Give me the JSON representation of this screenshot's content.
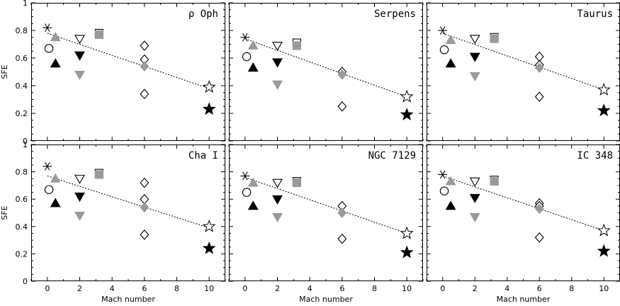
{
  "chart_data": {
    "type": "scatter",
    "xlabel": "Mach number",
    "ylabel": "SFE",
    "xlim": [
      -1,
      11
    ],
    "ylim": [
      0,
      1
    ],
    "xticks": [
      0,
      2,
      4,
      6,
      8,
      10
    ],
    "yticks": [
      0,
      0.2,
      0.4,
      0.6,
      0.8,
      1
    ],
    "xtick_labels": [
      "0",
      "2",
      "4",
      "6",
      "8",
      "10"
    ],
    "ytick_labels": [
      "0",
      "0.2",
      "0.4",
      "0.6",
      "0.8",
      "1"
    ],
    "colors": {
      "black": "#000000",
      "gray": "#9a9a9a",
      "fill_white": "#ffffff"
    },
    "panels": [
      {
        "title": "ρ Oph",
        "fit_line": {
          "x": [
            0,
            10
          ],
          "y": [
            0.78,
            0.38
          ]
        },
        "points": [
          {
            "x": 0.0,
            "y": 0.82,
            "marker": "asterisk",
            "color": "black"
          },
          {
            "x": 0.1,
            "y": 0.67,
            "marker": "circle-open",
            "color": "black"
          },
          {
            "x": 0.5,
            "y": 0.56,
            "marker": "triangle-up",
            "color": "black"
          },
          {
            "x": 0.5,
            "y": 0.75,
            "marker": "triangle-up",
            "color": "gray"
          },
          {
            "x": 2.0,
            "y": 0.74,
            "marker": "triangle-down-open",
            "color": "black"
          },
          {
            "x": 2.0,
            "y": 0.62,
            "marker": "triangle-down",
            "color": "black"
          },
          {
            "x": 2.0,
            "y": 0.48,
            "marker": "triangle-down",
            "color": "gray"
          },
          {
            "x": 3.2,
            "y": 0.78,
            "marker": "square-open",
            "color": "black"
          },
          {
            "x": 3.2,
            "y": 0.77,
            "marker": "square",
            "color": "gray"
          },
          {
            "x": 6.0,
            "y": 0.69,
            "marker": "diamond-open",
            "color": "black"
          },
          {
            "x": 6.0,
            "y": 0.59,
            "marker": "diamond-open",
            "color": "black"
          },
          {
            "x": 6.0,
            "y": 0.54,
            "marker": "diamond",
            "color": "gray"
          },
          {
            "x": 6.0,
            "y": 0.34,
            "marker": "diamond-open",
            "color": "black"
          },
          {
            "x": 10.0,
            "y": 0.39,
            "marker": "star-open",
            "color": "black"
          },
          {
            "x": 10.0,
            "y": 0.23,
            "marker": "star",
            "color": "black"
          }
        ]
      },
      {
        "title": "Serpens",
        "fit_line": {
          "x": [
            0,
            10
          ],
          "y": [
            0.74,
            0.32
          ]
        },
        "points": [
          {
            "x": 0.0,
            "y": 0.75,
            "marker": "asterisk",
            "color": "black"
          },
          {
            "x": 0.1,
            "y": 0.61,
            "marker": "circle-open",
            "color": "black"
          },
          {
            "x": 0.5,
            "y": 0.53,
            "marker": "triangle-up",
            "color": "black"
          },
          {
            "x": 0.5,
            "y": 0.69,
            "marker": "triangle-up",
            "color": "gray"
          },
          {
            "x": 2.0,
            "y": 0.69,
            "marker": "triangle-down-open",
            "color": "black"
          },
          {
            "x": 2.0,
            "y": 0.57,
            "marker": "triangle-down",
            "color": "black"
          },
          {
            "x": 2.0,
            "y": 0.41,
            "marker": "triangle-down",
            "color": "gray"
          },
          {
            "x": 3.2,
            "y": 0.71,
            "marker": "square-open",
            "color": "black"
          },
          {
            "x": 3.2,
            "y": 0.69,
            "marker": "square",
            "color": "gray"
          },
          {
            "x": 6.0,
            "y": 0.5,
            "marker": "diamond-open",
            "color": "black"
          },
          {
            "x": 6.0,
            "y": 0.48,
            "marker": "diamond",
            "color": "gray"
          },
          {
            "x": 6.0,
            "y": 0.25,
            "marker": "diamond-open",
            "color": "black"
          },
          {
            "x": 10.0,
            "y": 0.32,
            "marker": "star-open",
            "color": "black"
          },
          {
            "x": 10.0,
            "y": 0.19,
            "marker": "star",
            "color": "black"
          }
        ]
      },
      {
        "title": "Taurus",
        "fit_line": {
          "x": [
            0,
            10
          ],
          "y": [
            0.78,
            0.37
          ]
        },
        "points": [
          {
            "x": 0.0,
            "y": 0.8,
            "marker": "asterisk",
            "color": "black"
          },
          {
            "x": 0.1,
            "y": 0.66,
            "marker": "circle-open",
            "color": "black"
          },
          {
            "x": 0.5,
            "y": 0.56,
            "marker": "triangle-up",
            "color": "black"
          },
          {
            "x": 0.5,
            "y": 0.73,
            "marker": "triangle-up",
            "color": "gray"
          },
          {
            "x": 2.0,
            "y": 0.74,
            "marker": "triangle-down-open",
            "color": "black"
          },
          {
            "x": 2.0,
            "y": 0.61,
            "marker": "triangle-down",
            "color": "black"
          },
          {
            "x": 2.0,
            "y": 0.47,
            "marker": "triangle-down",
            "color": "gray"
          },
          {
            "x": 3.2,
            "y": 0.75,
            "marker": "square-open",
            "color": "black"
          },
          {
            "x": 3.2,
            "y": 0.74,
            "marker": "square",
            "color": "gray"
          },
          {
            "x": 6.0,
            "y": 0.61,
            "marker": "diamond-open",
            "color": "black"
          },
          {
            "x": 6.0,
            "y": 0.55,
            "marker": "diamond-open",
            "color": "black"
          },
          {
            "x": 6.0,
            "y": 0.53,
            "marker": "diamond",
            "color": "gray"
          },
          {
            "x": 6.0,
            "y": 0.32,
            "marker": "diamond-open",
            "color": "black"
          },
          {
            "x": 10.0,
            "y": 0.37,
            "marker": "star-open",
            "color": "black"
          },
          {
            "x": 10.0,
            "y": 0.22,
            "marker": "star",
            "color": "black"
          }
        ]
      },
      {
        "title": "Cha I",
        "fit_line": {
          "x": [
            0,
            10
          ],
          "y": [
            0.77,
            0.39
          ]
        },
        "points": [
          {
            "x": 0.0,
            "y": 0.84,
            "marker": "asterisk",
            "color": "black"
          },
          {
            "x": 0.1,
            "y": 0.67,
            "marker": "circle-open",
            "color": "black"
          },
          {
            "x": 0.5,
            "y": 0.57,
            "marker": "triangle-up",
            "color": "black"
          },
          {
            "x": 0.5,
            "y": 0.75,
            "marker": "triangle-up",
            "color": "gray"
          },
          {
            "x": 2.0,
            "y": 0.75,
            "marker": "triangle-down-open",
            "color": "black"
          },
          {
            "x": 2.0,
            "y": 0.62,
            "marker": "triangle-down",
            "color": "black"
          },
          {
            "x": 2.0,
            "y": 0.48,
            "marker": "triangle-down",
            "color": "gray"
          },
          {
            "x": 3.2,
            "y": 0.79,
            "marker": "square-open",
            "color": "black"
          },
          {
            "x": 3.2,
            "y": 0.78,
            "marker": "square",
            "color": "gray"
          },
          {
            "x": 6.0,
            "y": 0.72,
            "marker": "diamond-open",
            "color": "black"
          },
          {
            "x": 6.0,
            "y": 0.6,
            "marker": "diamond-open",
            "color": "black"
          },
          {
            "x": 6.0,
            "y": 0.54,
            "marker": "diamond",
            "color": "gray"
          },
          {
            "x": 6.0,
            "y": 0.34,
            "marker": "diamond-open",
            "color": "black"
          },
          {
            "x": 10.0,
            "y": 0.4,
            "marker": "star-open",
            "color": "black"
          },
          {
            "x": 10.0,
            "y": 0.24,
            "marker": "star",
            "color": "black"
          }
        ]
      },
      {
        "title": "NGC 7129",
        "fit_line": {
          "x": [
            0,
            10
          ],
          "y": [
            0.76,
            0.35
          ]
        },
        "points": [
          {
            "x": 0.0,
            "y": 0.77,
            "marker": "asterisk",
            "color": "black"
          },
          {
            "x": 0.1,
            "y": 0.65,
            "marker": "circle-open",
            "color": "black"
          },
          {
            "x": 0.5,
            "y": 0.55,
            "marker": "triangle-up",
            "color": "black"
          },
          {
            "x": 0.5,
            "y": 0.72,
            "marker": "triangle-up",
            "color": "gray"
          },
          {
            "x": 2.0,
            "y": 0.72,
            "marker": "triangle-down-open",
            "color": "black"
          },
          {
            "x": 2.0,
            "y": 0.6,
            "marker": "triangle-down",
            "color": "black"
          },
          {
            "x": 2.0,
            "y": 0.47,
            "marker": "triangle-down",
            "color": "gray"
          },
          {
            "x": 3.2,
            "y": 0.73,
            "marker": "square-open",
            "color": "black"
          },
          {
            "x": 3.2,
            "y": 0.72,
            "marker": "square",
            "color": "gray"
          },
          {
            "x": 6.0,
            "y": 0.55,
            "marker": "diamond-open",
            "color": "black"
          },
          {
            "x": 6.0,
            "y": 0.5,
            "marker": "diamond",
            "color": "gray"
          },
          {
            "x": 6.0,
            "y": 0.31,
            "marker": "diamond-open",
            "color": "black"
          },
          {
            "x": 10.0,
            "y": 0.35,
            "marker": "star-open",
            "color": "black"
          },
          {
            "x": 10.0,
            "y": 0.21,
            "marker": "star",
            "color": "black"
          }
        ]
      },
      {
        "title": "IC 348",
        "fit_line": {
          "x": [
            0,
            10
          ],
          "y": [
            0.77,
            0.37
          ]
        },
        "points": [
          {
            "x": 0.0,
            "y": 0.78,
            "marker": "asterisk",
            "color": "black"
          },
          {
            "x": 0.1,
            "y": 0.66,
            "marker": "circle-open",
            "color": "black"
          },
          {
            "x": 0.5,
            "y": 0.55,
            "marker": "triangle-up",
            "color": "black"
          },
          {
            "x": 0.5,
            "y": 0.73,
            "marker": "triangle-up",
            "color": "gray"
          },
          {
            "x": 2.0,
            "y": 0.73,
            "marker": "triangle-down-open",
            "color": "black"
          },
          {
            "x": 2.0,
            "y": 0.61,
            "marker": "triangle-down",
            "color": "black"
          },
          {
            "x": 2.0,
            "y": 0.47,
            "marker": "triangle-down",
            "color": "gray"
          },
          {
            "x": 3.2,
            "y": 0.74,
            "marker": "square-open",
            "color": "black"
          },
          {
            "x": 3.2,
            "y": 0.73,
            "marker": "square",
            "color": "gray"
          },
          {
            "x": 6.0,
            "y": 0.57,
            "marker": "diamond-open",
            "color": "black"
          },
          {
            "x": 6.0,
            "y": 0.55,
            "marker": "diamond-open",
            "color": "black"
          },
          {
            "x": 6.0,
            "y": 0.53,
            "marker": "diamond",
            "color": "gray"
          },
          {
            "x": 6.0,
            "y": 0.32,
            "marker": "diamond-open",
            "color": "black"
          },
          {
            "x": 10.0,
            "y": 0.37,
            "marker": "star-open",
            "color": "black"
          },
          {
            "x": 10.0,
            "y": 0.22,
            "marker": "star",
            "color": "black"
          }
        ]
      }
    ]
  }
}
